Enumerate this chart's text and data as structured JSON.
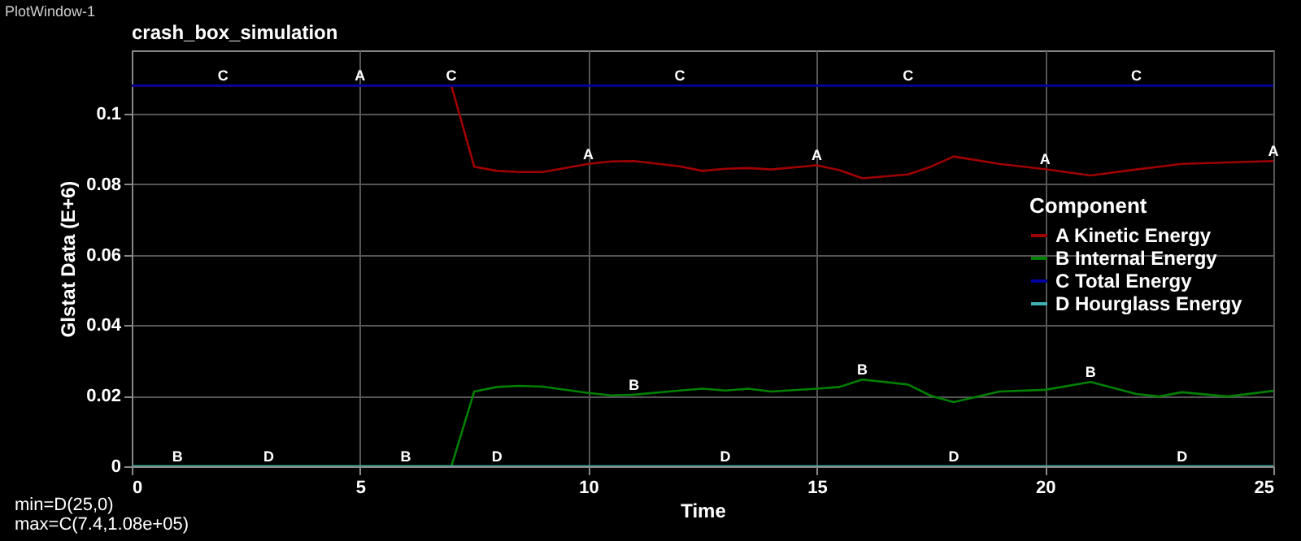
{
  "chart_data": {
    "type": "line",
    "title": "crash_box_simulation",
    "xlabel": "Time",
    "ylabel": "Glstat Data (E+6)",
    "legend_title": "Component",
    "x": [
      0,
      7,
      7.5,
      8,
      8.5,
      9,
      10,
      10.5,
      11,
      12,
      12.5,
      13,
      13.5,
      14,
      15,
      15.5,
      16,
      17,
      17.5,
      18,
      19,
      20,
      21,
      22,
      22.5,
      23,
      24,
      25
    ],
    "series": [
      {
        "name": "A Kinetic Energy",
        "color": "#a00000",
        "values": [
          0.108,
          0.108,
          0.085,
          0.0838,
          0.0835,
          0.0835,
          0.0858,
          0.0865,
          0.0866,
          0.0851,
          0.0838,
          0.0844,
          0.0846,
          0.0842,
          0.0854,
          0.084,
          0.0817,
          0.0828,
          0.085,
          0.0879,
          0.0858,
          0.0843,
          0.0825,
          0.0842,
          0.085,
          0.0858,
          0.0862,
          0.0866
        ]
      },
      {
        "name": "B Internal Energy",
        "color": "#008000",
        "values": [
          0,
          0,
          0.0212,
          0.0225,
          0.0228,
          0.0226,
          0.0208,
          0.0201,
          0.0203,
          0.0215,
          0.022,
          0.0215,
          0.022,
          0.0212,
          0.022,
          0.0225,
          0.0246,
          0.0232,
          0.02,
          0.0182,
          0.0212,
          0.0217,
          0.0239,
          0.0205,
          0.0198,
          0.021,
          0.0198,
          0.0214
        ]
      },
      {
        "name": "C Total Energy",
        "color": "#0000a0",
        "values": [
          0.108,
          0.108,
          0.108,
          0.108,
          0.108,
          0.108,
          0.108,
          0.108,
          0.108,
          0.108,
          0.108,
          0.108,
          0.108,
          0.108,
          0.108,
          0.108,
          0.108,
          0.108,
          0.108,
          0.108,
          0.108,
          0.108,
          0.108,
          0.108,
          0.108,
          0.108,
          0.108,
          0.108
        ]
      },
      {
        "name": "D Hourglass Energy",
        "color": "#40b0b0",
        "values": [
          0,
          0,
          0,
          0,
          0,
          0,
          0,
          0,
          0,
          0,
          0,
          0,
          0,
          0,
          0,
          0,
          0,
          0,
          0,
          0,
          0,
          0,
          0,
          0,
          0,
          0,
          0,
          0
        ]
      }
    ],
    "xlim": [
      0,
      25
    ],
    "xticks": [
      0,
      5,
      10,
      15,
      20,
      25
    ],
    "ylim": [
      0,
      0.118
    ],
    "yticks": [
      0,
      0.02,
      0.04,
      0.06,
      0.08,
      0.1
    ],
    "grid": true,
    "legend": "right",
    "line_style": "solid",
    "annotations": [
      "PlotWindow-1",
      "min=D(25,0)",
      "max=C(7.4,1.08e+05)",
      {
        "text": "C",
        "x": 2,
        "y": 0.108
      },
      {
        "text": "C",
        "x": 7,
        "y": 0.108
      },
      {
        "text": "C",
        "x": 12,
        "y": 0.108
      },
      {
        "text": "C",
        "x": 17,
        "y": 0.108
      },
      {
        "text": "C",
        "x": 22,
        "y": 0.108
      },
      {
        "text": "A",
        "x": 5,
        "y": 0.108
      },
      {
        "text": "A",
        "x": 10,
        "y": 0.0858
      },
      {
        "text": "A",
        "x": 15,
        "y": 0.0854
      },
      {
        "text": "A",
        "x": 20,
        "y": 0.0843
      },
      {
        "text": "A",
        "x": 25,
        "y": 0.0866
      },
      {
        "text": "B",
        "x": 1,
        "y": 0
      },
      {
        "text": "B",
        "x": 6,
        "y": 0
      },
      {
        "text": "B",
        "x": 11,
        "y": 0.0203
      },
      {
        "text": "B",
        "x": 16,
        "y": 0.0246
      },
      {
        "text": "B",
        "x": 21,
        "y": 0.0239
      },
      {
        "text": "D",
        "x": 3,
        "y": 0
      },
      {
        "text": "D",
        "x": 8,
        "y": 0
      },
      {
        "text": "D",
        "x": 13,
        "y": 0
      },
      {
        "text": "D",
        "x": 18,
        "y": 0
      },
      {
        "text": "D",
        "x": 23,
        "y": 0
      }
    ]
  }
}
